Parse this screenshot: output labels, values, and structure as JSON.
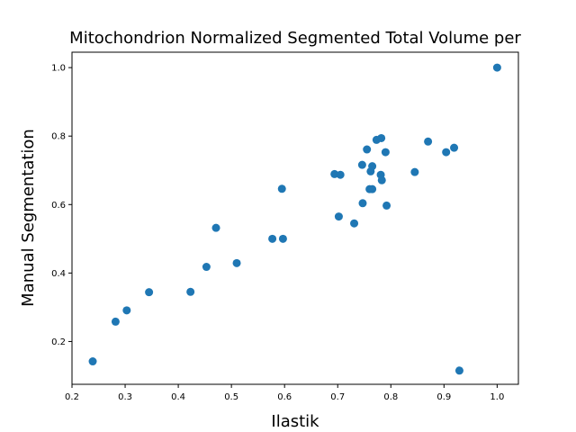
{
  "chart_data": {
    "type": "scatter",
    "title": "Mitochondrion Normalized Segmented Total Volume per",
    "xlabel": "Ilastik",
    "ylabel": "Manual Segmentation",
    "xlim": [
      0.2,
      1.04
    ],
    "ylim": [
      0.075,
      1.045
    ],
    "xticks": [
      0.2,
      0.3,
      0.4,
      0.5,
      0.6,
      0.7,
      0.8,
      0.9,
      1.0
    ],
    "xtick_labels": [
      "0.2",
      "0.3",
      "0.4",
      "0.5",
      "0.6",
      "0.7",
      "0.8",
      "0.9",
      "1.0"
    ],
    "yticks": [
      0.2,
      0.4,
      0.6,
      0.8,
      1.0
    ],
    "ytick_labels": [
      "0.2",
      "0.4",
      "0.6",
      "0.8",
      "1.0"
    ],
    "grid": false,
    "marker_color": "#1f77b4",
    "series": [
      {
        "points": [
          [
            0.239,
            0.142
          ],
          [
            0.282,
            0.258
          ],
          [
            0.303,
            0.291
          ],
          [
            0.345,
            0.344
          ],
          [
            0.423,
            0.345
          ],
          [
            0.453,
            0.418
          ],
          [
            0.471,
            0.532
          ],
          [
            0.51,
            0.429
          ],
          [
            0.577,
            0.5
          ],
          [
            0.597,
            0.5
          ],
          [
            0.595,
            0.646
          ],
          [
            0.694,
            0.689
          ],
          [
            0.705,
            0.687
          ],
          [
            0.702,
            0.565
          ],
          [
            0.731,
            0.545
          ],
          [
            0.746,
            0.716
          ],
          [
            0.747,
            0.604
          ],
          [
            0.755,
            0.761
          ],
          [
            0.76,
            0.645
          ],
          [
            0.765,
            0.645
          ],
          [
            0.762,
            0.697
          ],
          [
            0.765,
            0.712
          ],
          [
            0.773,
            0.789
          ],
          [
            0.782,
            0.794
          ],
          [
            0.781,
            0.687
          ],
          [
            0.783,
            0.671
          ],
          [
            0.79,
            0.753
          ],
          [
            0.792,
            0.597
          ],
          [
            0.845,
            0.695
          ],
          [
            0.87,
            0.784
          ],
          [
            0.904,
            0.753
          ],
          [
            0.919,
            0.766
          ],
          [
            0.929,
            0.115
          ],
          [
            1.0,
            1.0
          ]
        ]
      }
    ]
  }
}
